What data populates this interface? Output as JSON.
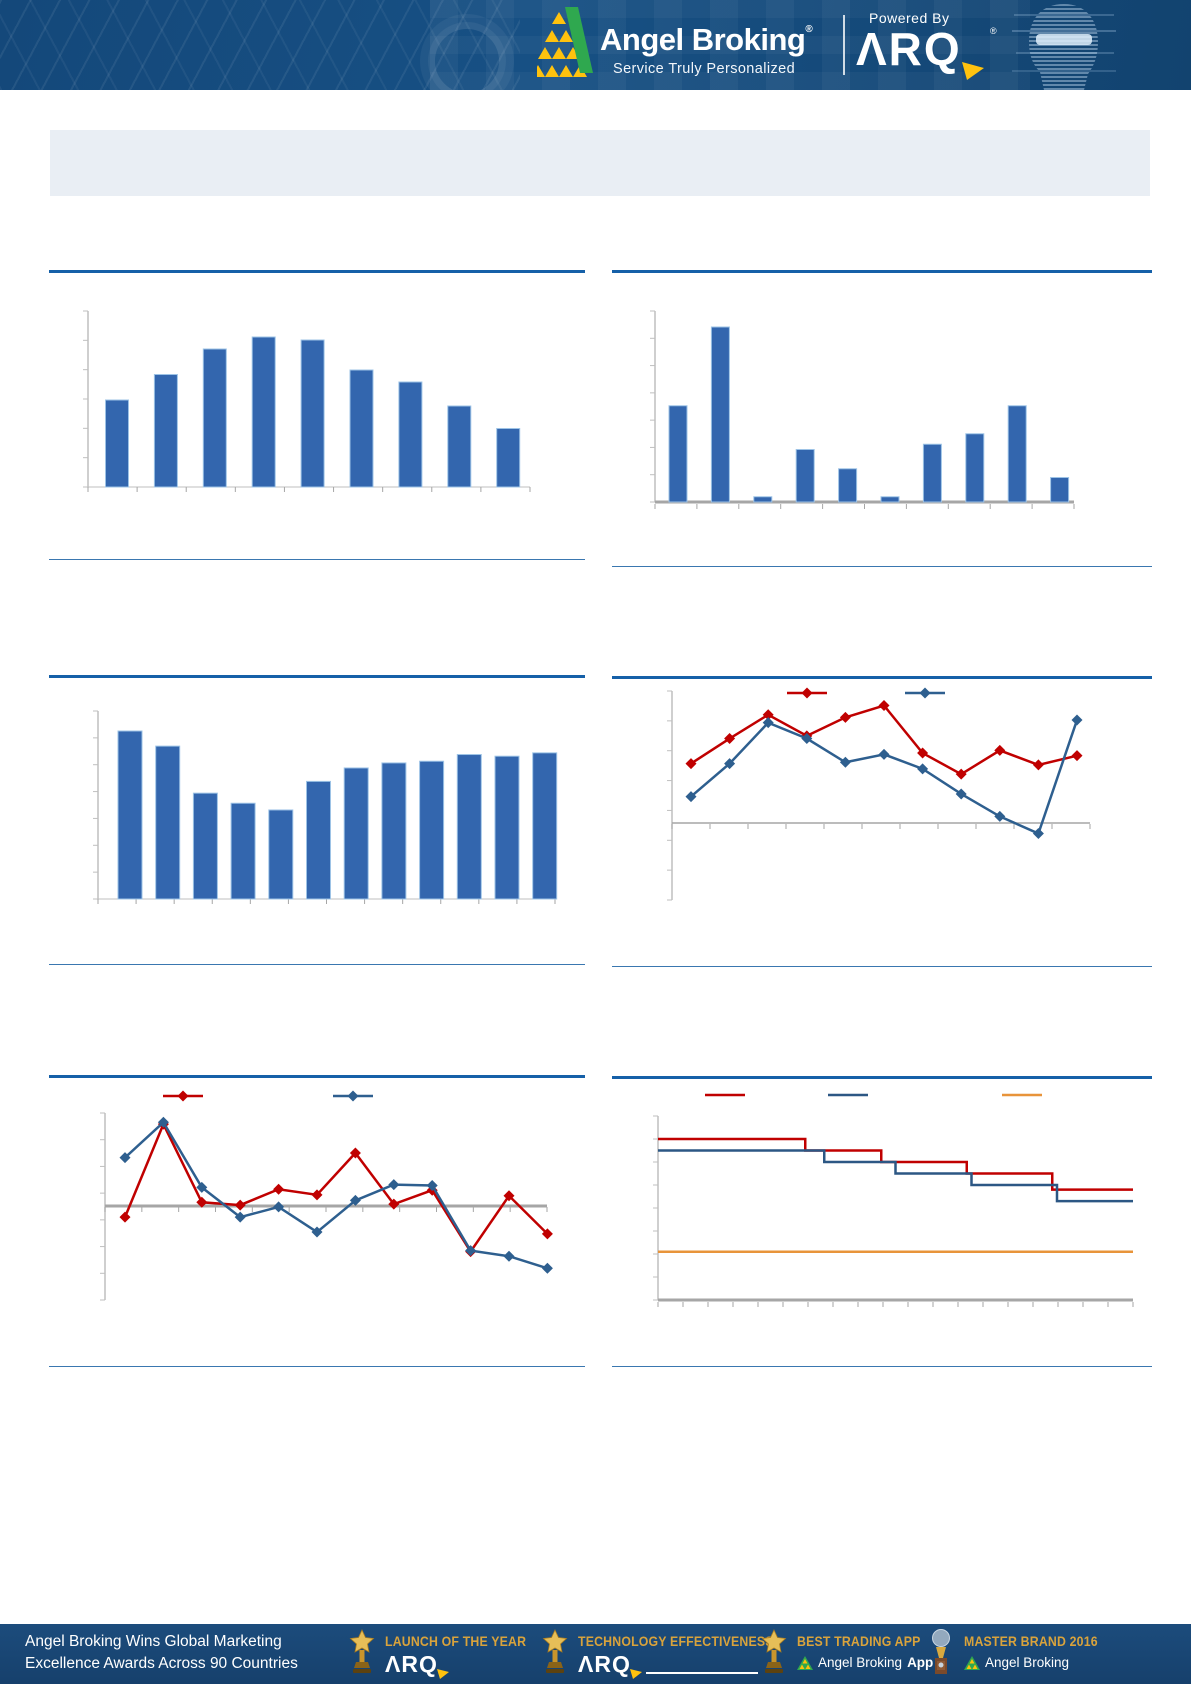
{
  "palette": {
    "bar_blue": "#3366AE",
    "bar_edge": "#9DC3E6",
    "red": "#C00000",
    "line_blue": "#2E5F8F",
    "step_blue": "#2C5784",
    "orange": "#E8943A",
    "axis_gray": "#BFBFBF",
    "zero_gray": "#A6A6A6",
    "divider_thick": "#1560A8",
    "divider_thin": "#3A77B0",
    "banner_blue": "#175084",
    "footer_blue": "#1A4773",
    "gold": "#D9A33C",
    "logo_yellow": "#FFC20E",
    "logo_green": "#2FA84F"
  },
  "header": {
    "brand": "Angel Broking",
    "reg": "®",
    "tagline": "Service Truly Personalized",
    "powered_by": "Powered By",
    "arq": "ΛRQ"
  },
  "chart_data": [
    {
      "id": "bar-top-left",
      "type": "bar",
      "title": "",
      "xlabel": "",
      "ylabel": "",
      "n_bars": 9,
      "values": [
        58,
        75,
        92,
        100,
        98,
        78,
        70,
        54,
        39
      ],
      "units": "relative height, % of tallest bar (axis tick labels not rendered in image)",
      "bar_color": "#3366AE",
      "grid": false,
      "legend": false
    },
    {
      "id": "bar-top-right",
      "type": "bar",
      "title": "",
      "xlabel": "",
      "ylabel": "",
      "n_bars": 10,
      "values": [
        55,
        100,
        3,
        30,
        19,
        3,
        33,
        39,
        55,
        14
      ],
      "units": "relative height, % of tallest bar (axis tick labels not rendered in image)",
      "bar_color": "#3366AE",
      "grid": false,
      "legend": false
    },
    {
      "id": "bar-mid-left",
      "type": "bar",
      "title": "",
      "xlabel": "",
      "ylabel": "",
      "n_bars": 12,
      "values": [
        100,
        91,
        63,
        57,
        53,
        70,
        78,
        81,
        82,
        86,
        85,
        87
      ],
      "units": "relative height, % of tallest bar (axis tick labels not rendered in image)",
      "bar_color": "#3366AE",
      "grid": false,
      "legend": false
    },
    {
      "id": "line-mid-right",
      "type": "line",
      "title": "",
      "marker": "diamond",
      "zero_line": true,
      "legend_position": "top",
      "legend_text_visible": false,
      "units": "% of plot height above zero line",
      "series": [
        {
          "name": "series-red",
          "color": "#C00000",
          "values": [
            45,
            64,
            82,
            66,
            80,
            89,
            53,
            37,
            55,
            44,
            51
          ]
        },
        {
          "name": "series-blue",
          "color": "#2E5F8F",
          "values": [
            20,
            45,
            76,
            64,
            46,
            52,
            41,
            22,
            5,
            -8,
            78
          ]
        }
      ]
    },
    {
      "id": "line-bottom-left",
      "type": "line",
      "title": "",
      "marker": "diamond",
      "zero_line": true,
      "legend_position": "top",
      "legend_text_visible": false,
      "units": "% of plot height above zero line",
      "series": [
        {
          "name": "series-red",
          "color": "#C00000",
          "values": [
            -12,
            88,
            4,
            1,
            18,
            12,
            57,
            2,
            17,
            -49,
            11,
            -30
          ]
        },
        {
          "name": "series-blue",
          "color": "#2E5F8F",
          "values": [
            52,
            90,
            20,
            -12,
            -1,
            -28,
            6,
            23,
            22,
            -48,
            -54,
            -67
          ]
        }
      ]
    },
    {
      "id": "step-bottom-right",
      "type": "step",
      "title": "",
      "ylim": [
        0,
        8
      ],
      "legend_position": "top",
      "legend_text_visible": false,
      "series": [
        {
          "name": "series-red",
          "color": "#C00000",
          "levels": [
            7.0,
            6.5,
            6.0,
            5.5,
            4.8
          ],
          "breaks": [
            0.31,
            0.47,
            0.65,
            0.83
          ]
        },
        {
          "name": "series-blue",
          "color": "#2C5784",
          "levels": [
            6.5,
            6.0,
            5.5,
            5.0,
            4.3
          ],
          "breaks": [
            0.35,
            0.5,
            0.66,
            0.84
          ]
        },
        {
          "name": "series-orange-flat",
          "color": "#E8943A",
          "level": 2.1
        }
      ]
    }
  ],
  "footer": {
    "headline_line1": "Angel Broking Wins Global Marketing",
    "headline_line2": "Excellence Awards Across 90 Countries",
    "awards": [
      {
        "title": "LAUNCH OF THE YEAR",
        "sub": "ΛRQ",
        "sub_bold": "",
        "icon": "star-trophy"
      },
      {
        "title": "TECHNOLOGY EFFECTIVENESS",
        "sub": "ΛRQ",
        "sub_bold": "",
        "icon": "star-trophy"
      },
      {
        "title": "BEST TRADING APP",
        "sub": "Angel Broking",
        "sub_bold": "App",
        "icon": "star-trophy"
      },
      {
        "title": "MASTER BRAND 2016",
        "sub": "Angel Broking",
        "sub_bold": "",
        "icon": "globe-trophy"
      }
    ]
  }
}
